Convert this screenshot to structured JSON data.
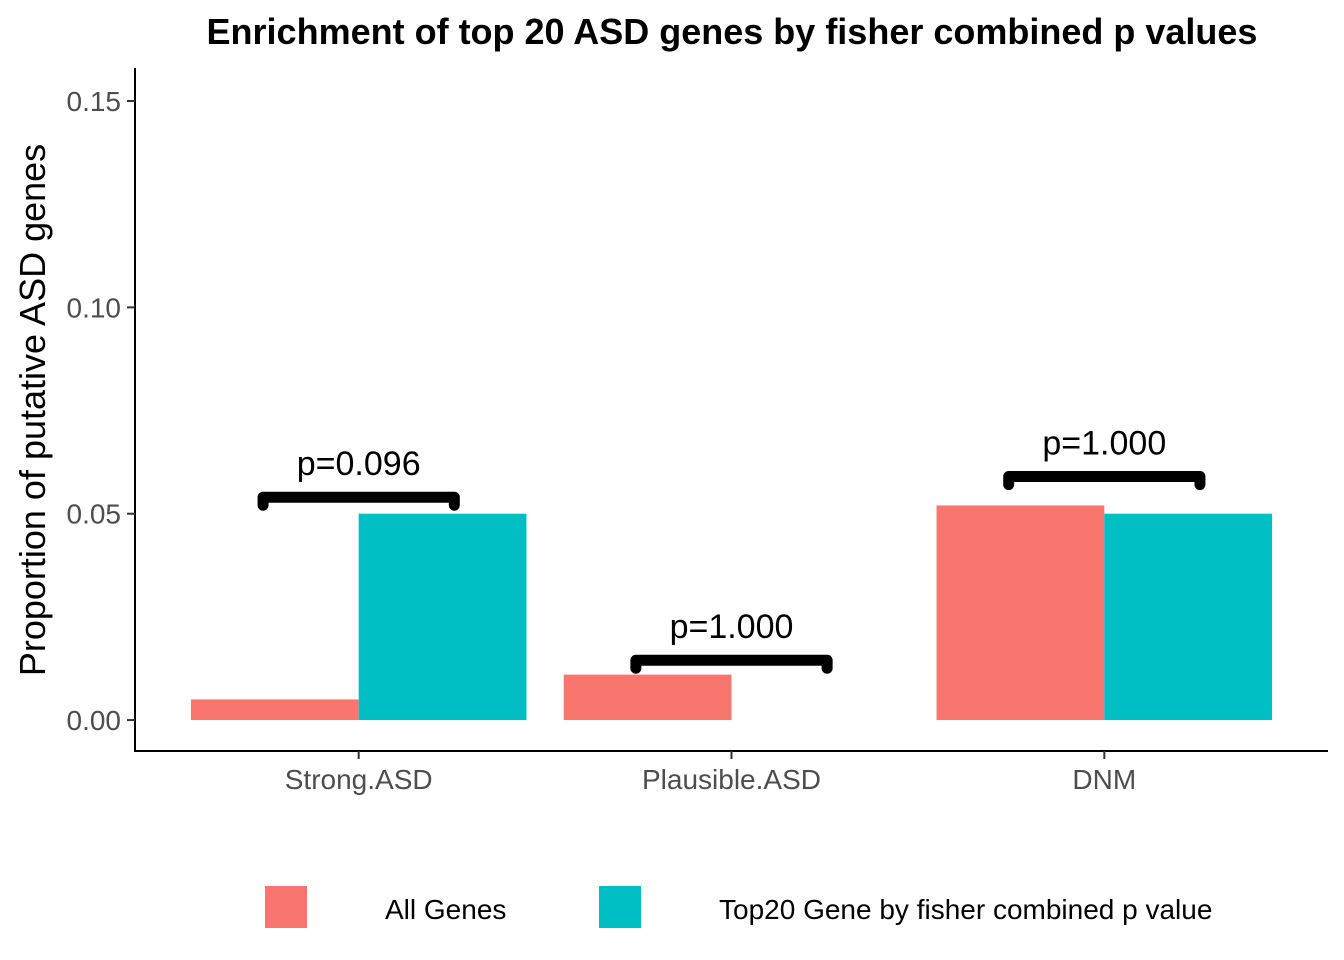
{
  "chart_data": {
    "type": "bar",
    "title": "Enrichment of top 20 ASD genes by fisher combined p values",
    "xlabel": "",
    "ylabel": "Proportion of putative ASD genes",
    "categories": [
      "Strong.ASD",
      "Plausible.ASD",
      "DNM"
    ],
    "ylim": [
      -0.0075,
      0.158
    ],
    "yticks": [
      0.0,
      0.05,
      0.1,
      0.15
    ],
    "ytick_labels": [
      "0.00",
      "0.05",
      "0.10",
      "0.15"
    ],
    "series": [
      {
        "name": "All Genes",
        "color": "#F8766D",
        "values": [
          0.005,
          0.011,
          0.052
        ]
      },
      {
        "name": "Top20 Gene by fisher combined p value",
        "color": "#00BFC4",
        "values": [
          0.05,
          0.0,
          0.05
        ]
      }
    ],
    "annotations": [
      {
        "category": "Strong.ASD",
        "label": "p=0.096",
        "y": 0.054
      },
      {
        "category": "Plausible.ASD",
        "label": "p=1.000",
        "y": 0.0145
      },
      {
        "category": "DNM",
        "label": "p=1.000",
        "y": 0.059
      }
    ],
    "grid": false,
    "legend_position": "bottom"
  }
}
